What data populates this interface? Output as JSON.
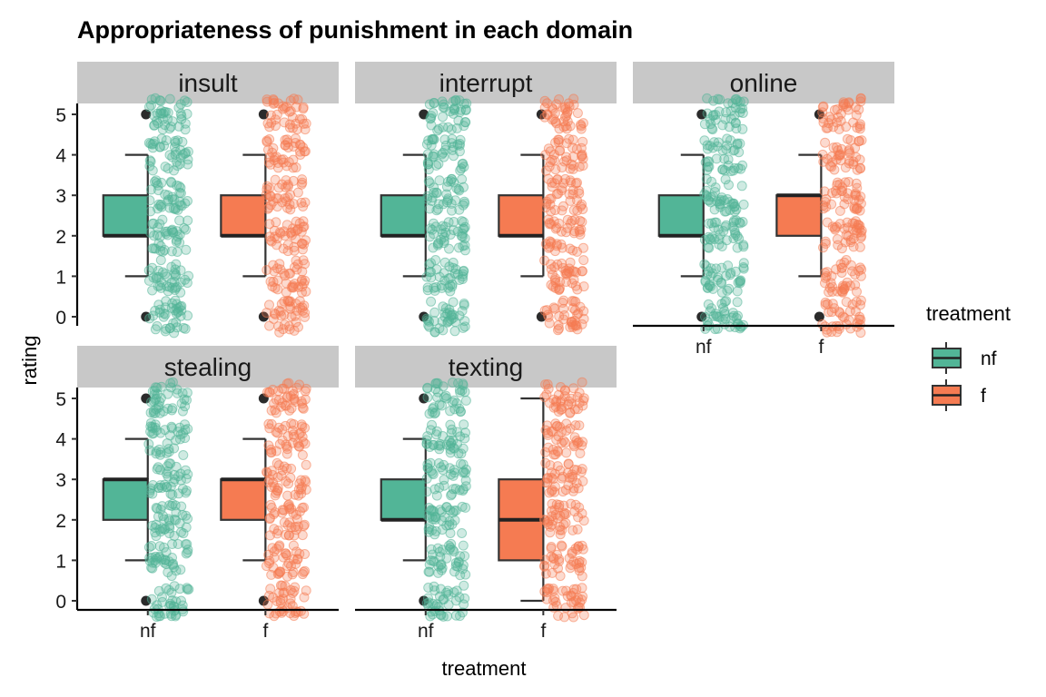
{
  "chart_data": {
    "type": "boxplot",
    "title": "Appropriateness of punishment in each domain",
    "xlabel": "treatment",
    "ylabel": "rating",
    "ylim": [
      0,
      5
    ],
    "y_ticks": [
      0,
      1,
      2,
      3,
      4,
      5
    ],
    "categories": [
      "nf",
      "f"
    ],
    "colors": {
      "nf": "#52B597",
      "f": "#F57B52"
    },
    "legend": {
      "title": "treatment",
      "position": "right",
      "entries": [
        "nf",
        "f"
      ]
    },
    "panels": [
      {
        "name": "insult",
        "boxes": [
          {
            "treatment": "nf",
            "min": 1,
            "q1": 2,
            "median": 2,
            "q3": 3,
            "max": 4,
            "outliers": [
              0,
              5
            ]
          },
          {
            "treatment": "f",
            "min": 1,
            "q1": 2,
            "median": 2,
            "q3": 3,
            "max": 4,
            "outliers": [
              0,
              5
            ]
          }
        ]
      },
      {
        "name": "interrupt",
        "boxes": [
          {
            "treatment": "nf",
            "min": 1,
            "q1": 2,
            "median": 2,
            "q3": 3,
            "max": 4,
            "outliers": [
              0,
              5
            ]
          },
          {
            "treatment": "f",
            "min": 1,
            "q1": 2,
            "median": 2,
            "q3": 3,
            "max": 4,
            "outliers": [
              0,
              5
            ]
          }
        ]
      },
      {
        "name": "online",
        "boxes": [
          {
            "treatment": "nf",
            "min": 1,
            "q1": 2,
            "median": 2,
            "q3": 3,
            "max": 4,
            "outliers": [
              0,
              5
            ]
          },
          {
            "treatment": "f",
            "min": 1,
            "q1": 2,
            "median": 3,
            "q3": 3,
            "max": 4,
            "outliers": [
              0,
              5
            ]
          }
        ]
      },
      {
        "name": "stealing",
        "boxes": [
          {
            "treatment": "nf",
            "min": 1,
            "q1": 2,
            "median": 3,
            "q3": 3,
            "max": 4,
            "outliers": [
              0,
              5
            ]
          },
          {
            "treatment": "f",
            "min": 1,
            "q1": 2,
            "median": 3,
            "q3": 3,
            "max": 4,
            "outliers": [
              0,
              5
            ]
          }
        ]
      },
      {
        "name": "texting",
        "boxes": [
          {
            "treatment": "nf",
            "min": 1,
            "q1": 2,
            "median": 2,
            "q3": 3,
            "max": 4,
            "outliers": [
              0,
              5
            ]
          },
          {
            "treatment": "f",
            "min": 0,
            "q1": 1,
            "median": 2,
            "q3": 3,
            "max": 5,
            "outliers": []
          }
        ]
      }
    ]
  }
}
